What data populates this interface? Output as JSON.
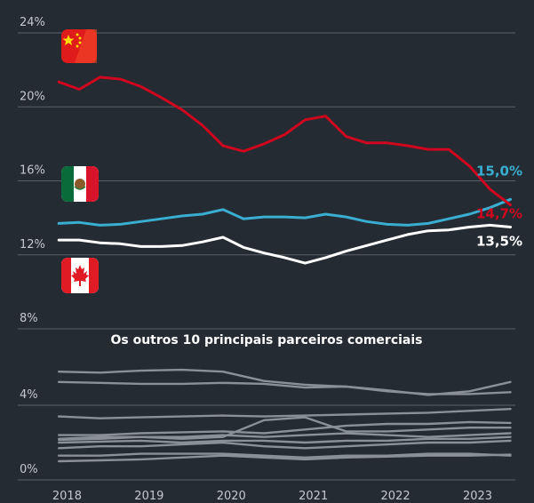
{
  "chart_data": [
    {
      "type": "line",
      "xlim": [
        2017.4,
        2023.46
      ],
      "ylim": [
        8,
        24
      ],
      "yticks": [
        {
          "value": 8,
          "label": "8%"
        },
        {
          "value": 12,
          "label": "12%"
        },
        {
          "value": 16,
          "label": "16%"
        },
        {
          "value": 20,
          "label": "20%"
        },
        {
          "value": 24,
          "label": "24%"
        }
      ],
      "grid": true,
      "x": [
        2017.9,
        2018.15,
        2018.4,
        2018.65,
        2018.9,
        2019.15,
        2019.4,
        2019.65,
        2019.9,
        2020.15,
        2020.4,
        2020.65,
        2020.9,
        2021.15,
        2021.4,
        2021.65,
        2021.9,
        2022.15,
        2022.4,
        2022.65,
        2022.9,
        2023.15,
        2023.4
      ],
      "series": [
        {
          "color": "#d0061f",
          "end_label": "14,7%",
          "values": [
            21.35,
            20.95,
            21.6,
            21.5,
            21.1,
            20.5,
            19.85,
            19.0,
            17.9,
            17.6,
            18.0,
            18.5,
            19.3,
            19.5,
            18.4,
            18.05,
            18.05,
            17.9,
            17.7,
            17.7,
            16.8,
            15.55,
            14.7
          ]
        },
        {
          "color": "#3aaed0",
          "end_label": "15,0%",
          "values": [
            13.7,
            13.75,
            13.6,
            13.65,
            13.8,
            13.95,
            14.1,
            14.2,
            14.45,
            13.95,
            14.05,
            14.05,
            14.0,
            14.2,
            14.05,
            13.8,
            13.65,
            13.6,
            13.7,
            13.95,
            14.2,
            14.55,
            15.0
          ]
        },
        {
          "color": "#ffffff",
          "end_label": "13,5%",
          "values": [
            12.8,
            12.8,
            12.65,
            12.6,
            12.45,
            12.45,
            12.5,
            12.7,
            12.95,
            12.4,
            12.1,
            11.85,
            11.55,
            11.85,
            12.2,
            12.5,
            12.8,
            13.1,
            13.3,
            13.35,
            13.5,
            13.6,
            13.5
          ]
        }
      ]
    },
    {
      "type": "line",
      "title": "Os outros 10 principais parceiros comerciais",
      "xlim": [
        2017.4,
        2023.46
      ],
      "ylim": [
        0,
        8
      ],
      "yticks": [
        {
          "value": 0,
          "label": "0%"
        },
        {
          "value": 4,
          "label": "4%"
        }
      ],
      "xticks": [
        2018,
        2019,
        2020,
        2021,
        2022,
        2023
      ],
      "grid": true,
      "x": [
        2017.9,
        2018.4,
        2018.9,
        2019.4,
        2019.9,
        2020.4,
        2020.9,
        2021.4,
        2021.9,
        2022.4,
        2022.9,
        2023.4
      ],
      "series": [
        {
          "color": "#8a9097",
          "values": [
            5.8,
            5.75,
            5.85,
            5.9,
            5.8,
            5.3,
            5.1,
            5.0,
            4.8,
            4.55,
            4.75,
            5.25
          ]
        },
        {
          "color": "#8a9097",
          "values": [
            5.25,
            5.2,
            5.15,
            5.15,
            5.2,
            5.15,
            4.95,
            5.0,
            4.75,
            4.6,
            4.6,
            4.7
          ]
        },
        {
          "color": "#8a9097",
          "values": [
            3.4,
            3.3,
            3.35,
            3.4,
            3.45,
            3.4,
            3.45,
            3.5,
            3.55,
            3.6,
            3.7,
            3.8
          ]
        },
        {
          "color": "#8a9097",
          "values": [
            2.2,
            2.3,
            2.3,
            2.2,
            2.3,
            3.2,
            3.35,
            2.6,
            2.6,
            2.7,
            2.8,
            2.8
          ]
        },
        {
          "color": "#8a9097",
          "values": [
            2.4,
            2.4,
            2.5,
            2.55,
            2.6,
            2.5,
            2.7,
            2.9,
            3.0,
            3.0,
            3.1,
            3.05
          ]
        },
        {
          "color": "#8a9097",
          "values": [
            2.15,
            2.2,
            2.3,
            2.3,
            2.4,
            2.3,
            2.4,
            2.5,
            2.4,
            2.3,
            2.4,
            2.5
          ]
        },
        {
          "color": "#8a9097",
          "values": [
            2.0,
            2.05,
            2.1,
            2.0,
            2.1,
            2.1,
            2.0,
            2.1,
            2.1,
            2.2,
            2.2,
            2.3
          ]
        },
        {
          "color": "#8a9097",
          "values": [
            1.7,
            1.8,
            1.8,
            1.9,
            2.0,
            1.8,
            1.7,
            1.8,
            1.9,
            2.0,
            2.0,
            2.1
          ]
        },
        {
          "color": "#8a9097",
          "values": [
            1.3,
            1.3,
            1.4,
            1.4,
            1.4,
            1.3,
            1.2,
            1.3,
            1.3,
            1.4,
            1.4,
            1.3
          ]
        },
        {
          "color": "#8a9097",
          "values": [
            1.0,
            1.05,
            1.1,
            1.2,
            1.3,
            1.2,
            1.1,
            1.2,
            1.25,
            1.3,
            1.3,
            1.35
          ]
        }
      ]
    }
  ]
}
